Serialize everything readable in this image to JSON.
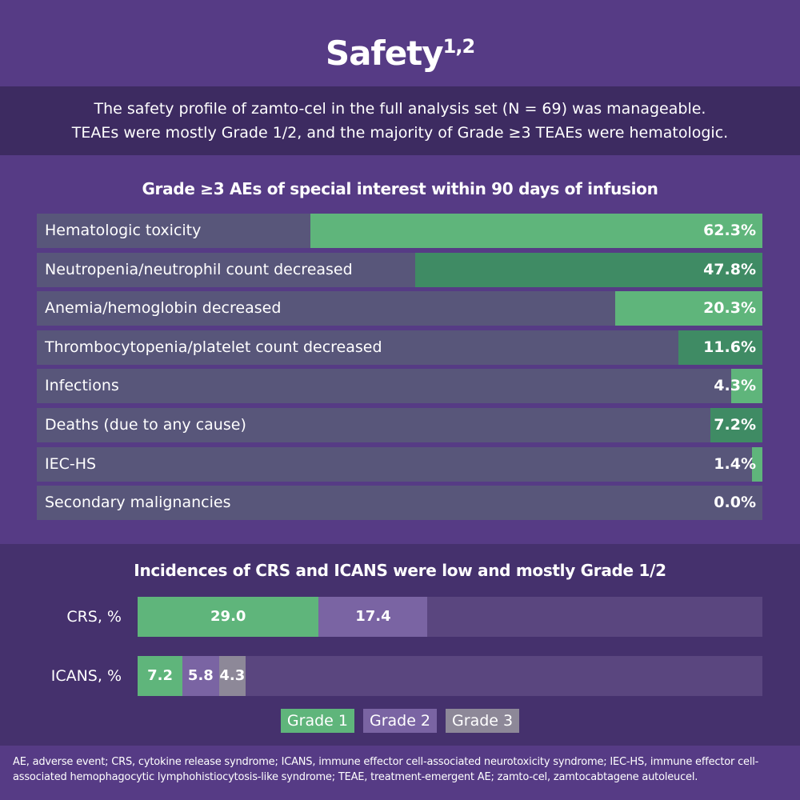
{
  "title": "Safety",
  "title_sup": "1,2",
  "summary": [
    "The safety profile of zamto-cel in the full analysis set (N = 69) was manageable.",
    "TEAEs were mostly Grade 1/2, and the majority of Grade ≥3 TEAEs were hematologic."
  ],
  "colors": {
    "green_light": "#5fb57b",
    "green_dark": "#3f8b64",
    "track": "#58567a",
    "grade1": "#5fb57b",
    "grade2": "#7a64a3",
    "grade3": "#8d8898"
  },
  "chart_data": [
    {
      "type": "bar",
      "orientation": "horizontal",
      "title": "Grade ≥3 AEs of special interest within 90 days of infusion",
      "xlim": [
        0,
        100
      ],
      "categories": [
        "Hematologic toxicity",
        "Neutropenia/neutrophil count decreased",
        "Anemia/hemoglobin decreased",
        "Thrombocytopenia/platelet count decreased",
        "Infections",
        "Deaths (due to any cause)",
        "IEC-HS",
        "Secondary malignancies"
      ],
      "values": [
        62.3,
        47.8,
        20.3,
        11.6,
        4.3,
        7.2,
        1.4,
        0.0
      ],
      "labels": [
        "62.3%",
        "47.8%",
        "20.3%",
        "11.6%",
        "4.3%",
        "7.2%",
        "1.4%",
        "0.0%"
      ]
    },
    {
      "type": "bar",
      "orientation": "horizontal",
      "stacked": true,
      "title": "Incidences of CRS and ICANS were low and mostly Grade 1/2",
      "xlim": [
        0,
        100
      ],
      "categories": [
        "CRS, %",
        "ICANS, %"
      ],
      "series": [
        {
          "name": "Grade 1",
          "values": [
            29.0,
            7.2
          ],
          "labels": [
            "29.0",
            "7.2"
          ]
        },
        {
          "name": "Grade 2",
          "values": [
            17.4,
            5.8
          ],
          "labels": [
            "17.4",
            "5.8"
          ]
        },
        {
          "name": "Grade 3",
          "values": [
            0,
            4.3
          ],
          "labels": [
            "",
            "4.3"
          ]
        }
      ],
      "legend": "bottom-center"
    }
  ],
  "footnote": "AE, adverse event; CRS, cytokine release syndrome; ICANS, immune effector cell-associated neurotoxicity syndrome; IEC-HS, immune effector cell-associated hemophagocytic lymphohistiocytosis-like syndrome; TEAE, treatment-emergent AE; zamto-cel, zamtocabtagene autoleucel."
}
